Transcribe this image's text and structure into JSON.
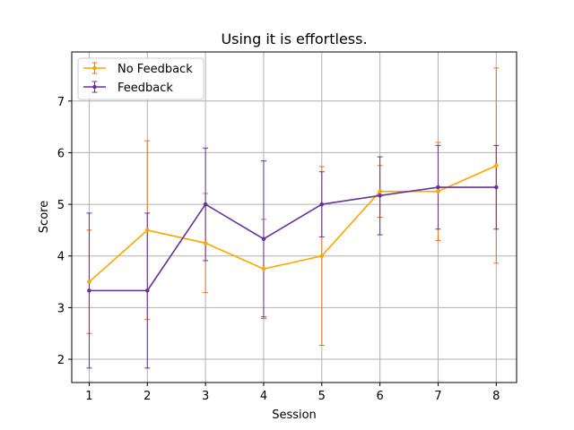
{
  "chart_data": {
    "type": "line",
    "title": "Using it is effortless.",
    "xlabel": "Session",
    "ylabel": "Score",
    "x": [
      1,
      2,
      3,
      4,
      5,
      6,
      7,
      8
    ],
    "xlim": [
      0.7,
      8.35
    ],
    "ylim": [
      1.55,
      7.95
    ],
    "yticks": [
      2,
      3,
      4,
      5,
      6,
      7
    ],
    "grid": true,
    "legend_position": "top-left",
    "series": [
      {
        "name": "No Feedback",
        "color": "#ffa500",
        "errorbar_color": "#e0762a",
        "values": [
          3.5,
          4.5,
          4.25,
          3.75,
          4.0,
          5.25,
          5.25,
          5.75
        ],
        "err_lower": [
          2.5,
          2.77,
          3.29,
          2.79,
          2.27,
          4.75,
          4.3,
          3.86
        ],
        "err_upper": [
          4.5,
          6.23,
          5.21,
          4.71,
          5.73,
          5.75,
          6.2,
          7.64
        ]
      },
      {
        "name": "Feedback",
        "color": "#663399",
        "errorbar_color": "#663399",
        "values": [
          3.33,
          3.33,
          5.0,
          4.33,
          5.0,
          5.17,
          5.33,
          5.33
        ],
        "err_lower": [
          1.83,
          1.83,
          3.91,
          2.82,
          4.37,
          4.41,
          4.52,
          4.52
        ],
        "err_upper": [
          4.83,
          4.83,
          6.09,
          5.84,
          5.63,
          5.92,
          6.14,
          6.14
        ]
      }
    ]
  }
}
